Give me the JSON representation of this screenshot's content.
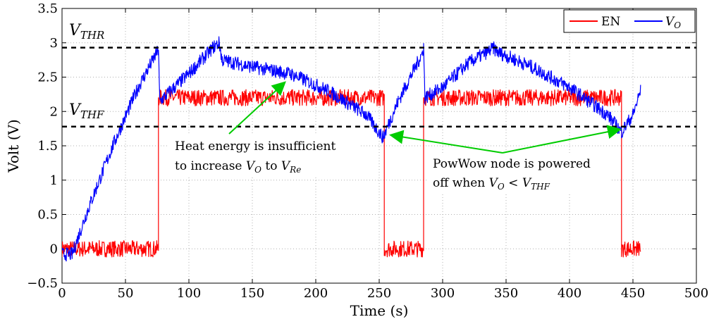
{
  "chart_data": {
    "type": "line",
    "xlabel": "Time (s)",
    "ylabel": "Volt (V)",
    "xlim": [
      0,
      500
    ],
    "ylim": [
      -0.5,
      3.5
    ],
    "x_ticks": [
      0,
      50,
      100,
      150,
      200,
      250,
      300,
      350,
      400,
      450,
      500
    ],
    "y_ticks": [
      -0.5,
      0,
      0.5,
      1,
      1.5,
      2,
      2.5,
      3,
      3.5
    ],
    "y_tick_labels": [
      "−0.5",
      "0",
      "0.5",
      "1",
      "1.5",
      "2",
      "2.5",
      "3",
      "3.5"
    ],
    "legend": {
      "placement": "top-right",
      "entries": [
        "EN",
        "V_O"
      ]
    },
    "series": [
      {
        "name": "EN",
        "color": "#ff0000",
        "noise": 0.12,
        "points": [
          [
            0,
            0
          ],
          [
            76,
            0
          ],
          [
            76,
            2.2
          ],
          [
            254,
            2.2
          ],
          [
            254,
            0
          ],
          [
            285,
            0
          ],
          [
            285,
            2.2
          ],
          [
            441,
            2.2
          ],
          [
            441,
            0
          ],
          [
            456,
            0
          ]
        ]
      },
      {
        "name": "V_O",
        "color": "#0000ff",
        "noise": 0.1,
        "points": [
          [
            0,
            -0.08
          ],
          [
            8,
            -0.08
          ],
          [
            20,
            0.55
          ],
          [
            40,
            1.5
          ],
          [
            60,
            2.35
          ],
          [
            76,
            2.9
          ],
          [
            77,
            2.15
          ],
          [
            100,
            2.55
          ],
          [
            120,
            2.95
          ],
          [
            124,
            3.0
          ],
          [
            126,
            2.75
          ],
          [
            150,
            2.65
          ],
          [
            180,
            2.55
          ],
          [
            210,
            2.3
          ],
          [
            240,
            1.95
          ],
          [
            253,
            1.62
          ],
          [
            265,
            2.15
          ],
          [
            284,
            2.85
          ],
          [
            285,
            2.95
          ],
          [
            286,
            2.2
          ],
          [
            300,
            2.35
          ],
          [
            320,
            2.7
          ],
          [
            340,
            2.92
          ],
          [
            345,
            2.85
          ],
          [
            370,
            2.65
          ],
          [
            400,
            2.35
          ],
          [
            430,
            1.95
          ],
          [
            441,
            1.7
          ],
          [
            450,
            1.95
          ],
          [
            456,
            2.3
          ]
        ]
      }
    ],
    "reference_lines": [
      {
        "name": "V_THR",
        "y": 2.93,
        "style": "dashed",
        "color": "#000000"
      },
      {
        "name": "V_THF",
        "y": 1.78,
        "style": "dashed",
        "color": "#000000"
      }
    ],
    "annotations": [
      {
        "lines": [
          "Heat energy is insufficient",
          "to increase V_O to V_Re"
        ],
        "arrow_to": [
          [
            175,
            2.42
          ]
        ]
      },
      {
        "lines": [
          "PowWow node is powered",
          "off when V_O < V_THF"
        ],
        "arrow_to": [
          [
            258,
            1.65
          ],
          [
            440,
            1.77
          ]
        ]
      }
    ]
  }
}
